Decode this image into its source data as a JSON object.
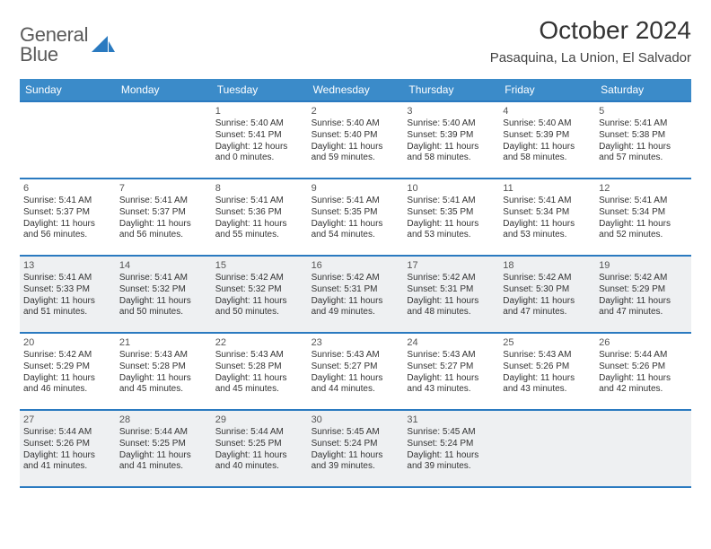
{
  "logo": {
    "line1": "General",
    "line2": "Blue"
  },
  "title": "October 2024",
  "location": "Pasaquina, La Union, El Salvador",
  "colors": {
    "accent": "#3b8bc9",
    "border": "#2a7ac0",
    "alt_bg": "#eef0f2",
    "text": "#333333"
  },
  "dow": [
    "Sunday",
    "Monday",
    "Tuesday",
    "Wednesday",
    "Thursday",
    "Friday",
    "Saturday"
  ],
  "cells": [
    {
      "n": "",
      "sr": "",
      "ss": "",
      "d1": "",
      "d2": ""
    },
    {
      "n": "",
      "sr": "",
      "ss": "",
      "d1": "",
      "d2": ""
    },
    {
      "n": "1",
      "sr": "Sunrise: 5:40 AM",
      "ss": "Sunset: 5:41 PM",
      "d1": "Daylight: 12 hours",
      "d2": "and 0 minutes."
    },
    {
      "n": "2",
      "sr": "Sunrise: 5:40 AM",
      "ss": "Sunset: 5:40 PM",
      "d1": "Daylight: 11 hours",
      "d2": "and 59 minutes."
    },
    {
      "n": "3",
      "sr": "Sunrise: 5:40 AM",
      "ss": "Sunset: 5:39 PM",
      "d1": "Daylight: 11 hours",
      "d2": "and 58 minutes."
    },
    {
      "n": "4",
      "sr": "Sunrise: 5:40 AM",
      "ss": "Sunset: 5:39 PM",
      "d1": "Daylight: 11 hours",
      "d2": "and 58 minutes."
    },
    {
      "n": "5",
      "sr": "Sunrise: 5:41 AM",
      "ss": "Sunset: 5:38 PM",
      "d1": "Daylight: 11 hours",
      "d2": "and 57 minutes."
    },
    {
      "n": "6",
      "sr": "Sunrise: 5:41 AM",
      "ss": "Sunset: 5:37 PM",
      "d1": "Daylight: 11 hours",
      "d2": "and 56 minutes."
    },
    {
      "n": "7",
      "sr": "Sunrise: 5:41 AM",
      "ss": "Sunset: 5:37 PM",
      "d1": "Daylight: 11 hours",
      "d2": "and 56 minutes."
    },
    {
      "n": "8",
      "sr": "Sunrise: 5:41 AM",
      "ss": "Sunset: 5:36 PM",
      "d1": "Daylight: 11 hours",
      "d2": "and 55 minutes."
    },
    {
      "n": "9",
      "sr": "Sunrise: 5:41 AM",
      "ss": "Sunset: 5:35 PM",
      "d1": "Daylight: 11 hours",
      "d2": "and 54 minutes."
    },
    {
      "n": "10",
      "sr": "Sunrise: 5:41 AM",
      "ss": "Sunset: 5:35 PM",
      "d1": "Daylight: 11 hours",
      "d2": "and 53 minutes."
    },
    {
      "n": "11",
      "sr": "Sunrise: 5:41 AM",
      "ss": "Sunset: 5:34 PM",
      "d1": "Daylight: 11 hours",
      "d2": "and 53 minutes."
    },
    {
      "n": "12",
      "sr": "Sunrise: 5:41 AM",
      "ss": "Sunset: 5:34 PM",
      "d1": "Daylight: 11 hours",
      "d2": "and 52 minutes."
    },
    {
      "n": "13",
      "sr": "Sunrise: 5:41 AM",
      "ss": "Sunset: 5:33 PM",
      "d1": "Daylight: 11 hours",
      "d2": "and 51 minutes."
    },
    {
      "n": "14",
      "sr": "Sunrise: 5:41 AM",
      "ss": "Sunset: 5:32 PM",
      "d1": "Daylight: 11 hours",
      "d2": "and 50 minutes."
    },
    {
      "n": "15",
      "sr": "Sunrise: 5:42 AM",
      "ss": "Sunset: 5:32 PM",
      "d1": "Daylight: 11 hours",
      "d2": "and 50 minutes."
    },
    {
      "n": "16",
      "sr": "Sunrise: 5:42 AM",
      "ss": "Sunset: 5:31 PM",
      "d1": "Daylight: 11 hours",
      "d2": "and 49 minutes."
    },
    {
      "n": "17",
      "sr": "Sunrise: 5:42 AM",
      "ss": "Sunset: 5:31 PM",
      "d1": "Daylight: 11 hours",
      "d2": "and 48 minutes."
    },
    {
      "n": "18",
      "sr": "Sunrise: 5:42 AM",
      "ss": "Sunset: 5:30 PM",
      "d1": "Daylight: 11 hours",
      "d2": "and 47 minutes."
    },
    {
      "n": "19",
      "sr": "Sunrise: 5:42 AM",
      "ss": "Sunset: 5:29 PM",
      "d1": "Daylight: 11 hours",
      "d2": "and 47 minutes."
    },
    {
      "n": "20",
      "sr": "Sunrise: 5:42 AM",
      "ss": "Sunset: 5:29 PM",
      "d1": "Daylight: 11 hours",
      "d2": "and 46 minutes."
    },
    {
      "n": "21",
      "sr": "Sunrise: 5:43 AM",
      "ss": "Sunset: 5:28 PM",
      "d1": "Daylight: 11 hours",
      "d2": "and 45 minutes."
    },
    {
      "n": "22",
      "sr": "Sunrise: 5:43 AM",
      "ss": "Sunset: 5:28 PM",
      "d1": "Daylight: 11 hours",
      "d2": "and 45 minutes."
    },
    {
      "n": "23",
      "sr": "Sunrise: 5:43 AM",
      "ss": "Sunset: 5:27 PM",
      "d1": "Daylight: 11 hours",
      "d2": "and 44 minutes."
    },
    {
      "n": "24",
      "sr": "Sunrise: 5:43 AM",
      "ss": "Sunset: 5:27 PM",
      "d1": "Daylight: 11 hours",
      "d2": "and 43 minutes."
    },
    {
      "n": "25",
      "sr": "Sunrise: 5:43 AM",
      "ss": "Sunset: 5:26 PM",
      "d1": "Daylight: 11 hours",
      "d2": "and 43 minutes."
    },
    {
      "n": "26",
      "sr": "Sunrise: 5:44 AM",
      "ss": "Sunset: 5:26 PM",
      "d1": "Daylight: 11 hours",
      "d2": "and 42 minutes."
    },
    {
      "n": "27",
      "sr": "Sunrise: 5:44 AM",
      "ss": "Sunset: 5:26 PM",
      "d1": "Daylight: 11 hours",
      "d2": "and 41 minutes."
    },
    {
      "n": "28",
      "sr": "Sunrise: 5:44 AM",
      "ss": "Sunset: 5:25 PM",
      "d1": "Daylight: 11 hours",
      "d2": "and 41 minutes."
    },
    {
      "n": "29",
      "sr": "Sunrise: 5:44 AM",
      "ss": "Sunset: 5:25 PM",
      "d1": "Daylight: 11 hours",
      "d2": "and 40 minutes."
    },
    {
      "n": "30",
      "sr": "Sunrise: 5:45 AM",
      "ss": "Sunset: 5:24 PM",
      "d1": "Daylight: 11 hours",
      "d2": "and 39 minutes."
    },
    {
      "n": "31",
      "sr": "Sunrise: 5:45 AM",
      "ss": "Sunset: 5:24 PM",
      "d1": "Daylight: 11 hours",
      "d2": "and 39 minutes."
    },
    {
      "n": "",
      "sr": "",
      "ss": "",
      "d1": "",
      "d2": ""
    },
    {
      "n": "",
      "sr": "",
      "ss": "",
      "d1": "",
      "d2": ""
    }
  ],
  "alt_rows": [
    2,
    4
  ]
}
